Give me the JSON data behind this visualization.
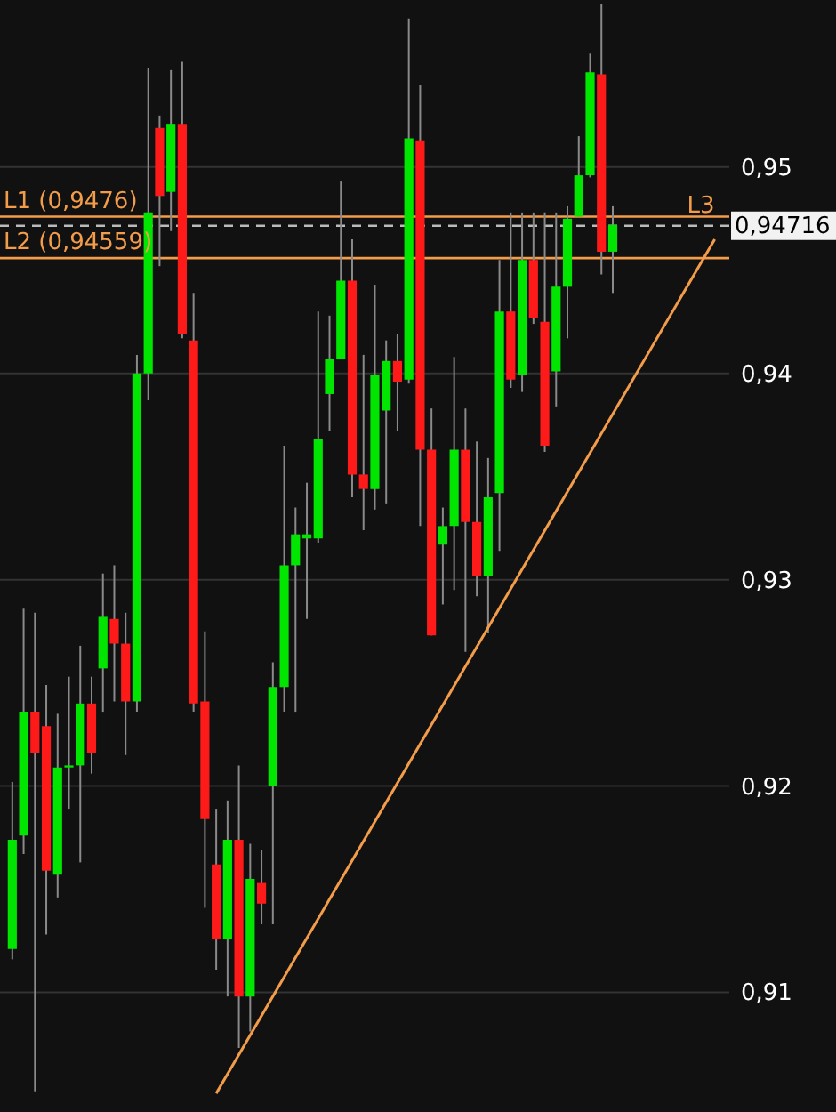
{
  "chart_data": {
    "type": "candlestick",
    "categories": [
      null,
      null,
      null,
      null,
      null,
      null,
      null,
      null,
      null,
      null,
      null,
      null,
      null,
      null,
      null,
      null,
      null,
      null,
      null,
      null,
      null,
      null,
      null,
      null,
      null,
      null,
      null,
      null,
      null,
      null,
      null,
      null,
      null,
      null,
      null,
      null,
      null,
      null,
      null,
      null,
      null,
      null,
      null,
      null,
      null,
      null,
      null,
      null,
      null,
      null,
      null,
      null,
      null,
      null,
      null,
      null,
      null,
      null,
      null,
      null,
      null,
      null,
      null
    ],
    "ohlc": [
      [
        0.9121,
        0.9202,
        0.9116,
        0.9174
      ],
      [
        0.9176,
        0.9286,
        0.9167,
        0.9236
      ],
      [
        0.9236,
        0.9284,
        0.9052,
        0.9216
      ],
      [
        0.9229,
        0.9249,
        0.9128,
        0.9159
      ],
      [
        0.9157,
        0.9235,
        0.9146,
        0.9209
      ],
      [
        0.9209,
        0.9253,
        0.9189,
        0.921
      ],
      [
        0.921,
        0.9268,
        0.9163,
        0.924
      ],
      [
        0.924,
        0.9253,
        0.9206,
        0.9216
      ],
      [
        0.9257,
        0.9303,
        0.9236,
        0.9282
      ],
      [
        0.9281,
        0.9307,
        0.9241,
        0.9269
      ],
      [
        0.9269,
        0.9284,
        0.9215,
        0.9241
      ],
      [
        0.9241,
        0.9409,
        0.9236,
        0.94
      ],
      [
        0.94,
        0.9548,
        0.9387,
        0.9478
      ],
      [
        0.9519,
        0.9525,
        0.9452,
        0.9486
      ],
      [
        0.9488,
        0.9547,
        0.9469,
        0.9521
      ],
      [
        0.9521,
        0.9551,
        0.9417,
        0.9419
      ],
      [
        0.9416,
        0.9439,
        0.9236,
        0.924
      ],
      [
        0.9241,
        0.9275,
        0.9141,
        0.9184
      ],
      [
        0.9162,
        0.9189,
        0.9111,
        0.9126
      ],
      [
        0.9126,
        0.9193,
        0.9098,
        0.9174
      ],
      [
        0.9174,
        0.921,
        0.9073,
        0.9098
      ],
      [
        0.9098,
        0.9172,
        0.9081,
        0.9155
      ],
      [
        0.9153,
        0.9169,
        0.9133,
        0.9143
      ],
      [
        0.92,
        0.926,
        0.9133,
        0.9248
      ],
      [
        0.9248,
        0.9365,
        0.9236,
        0.9307
      ],
      [
        0.9307,
        0.9335,
        0.9236,
        0.9322
      ],
      [
        0.932,
        0.9347,
        0.9281,
        0.9322
      ],
      [
        0.932,
        0.943,
        0.9318,
        0.9368
      ],
      [
        0.939,
        0.9428,
        0.9372,
        0.9407
      ],
      [
        0.9407,
        0.9493,
        0.9407,
        0.9445
      ],
      [
        0.9445,
        0.9465,
        0.934,
        0.9351
      ],
      [
        0.9351,
        0.9409,
        0.9324,
        0.9344
      ],
      [
        0.9344,
        0.9443,
        0.9334,
        0.9399
      ],
      [
        0.9382,
        0.9416,
        0.9337,
        0.9406
      ],
      [
        0.9406,
        0.9419,
        0.9372,
        0.9396
      ],
      [
        0.9397,
        0.9572,
        0.9395,
        0.9514
      ],
      [
        0.9513,
        0.954,
        0.9326,
        0.9363
      ],
      [
        0.9363,
        0.9383,
        0.9273,
        0.9273
      ],
      [
        0.9317,
        0.9335,
        0.9288,
        0.9326
      ],
      [
        0.9326,
        0.9408,
        0.9295,
        0.9363
      ],
      [
        0.9363,
        0.9383,
        0.9265,
        0.9328
      ],
      [
        0.9328,
        0.9367,
        0.9292,
        0.9302
      ],
      [
        0.9302,
        0.9359,
        0.9274,
        0.934
      ],
      [
        0.9342,
        0.9455,
        0.9314,
        0.943
      ],
      [
        0.943,
        0.9478,
        0.9393,
        0.9397
      ],
      [
        0.9399,
        0.9478,
        0.9391,
        0.9455
      ],
      [
        0.9455,
        0.9478,
        0.9424,
        0.9427
      ],
      [
        0.9425,
        0.9478,
        0.9362,
        0.9365
      ],
      [
        0.9401,
        0.9478,
        0.9384,
        0.9442
      ],
      [
        0.9442,
        0.9481,
        0.9417,
        0.9475
      ],
      [
        0.9476,
        0.9515,
        0.9476,
        0.9496
      ],
      [
        0.9496,
        0.9555,
        0.9495,
        0.9546
      ],
      [
        0.9545,
        0.9579,
        0.9448,
        0.9459
      ],
      [
        0.9459,
        0.9481,
        0.9439,
        0.9472
      ],
      null,
      null,
      null,
      null,
      null,
      null,
      null,
      null,
      null
    ],
    "colors": [
      "#00e600",
      "#00e600",
      "#ff1a1a",
      "#ff1a1a",
      "#00e600",
      "#00e600",
      "#00e600",
      "#ff1a1a",
      "#00e600",
      "#ff1a1a",
      "#ff1a1a",
      "#00e600",
      "#00e600",
      "#ff1a1a",
      "#00e600",
      "#ff1a1a",
      "#ff1a1a",
      "#ff1a1a",
      "#ff1a1a",
      "#00e600",
      "#ff1a1a",
      "#00e600",
      "#ff1a1a",
      "#00e600",
      "#00e600",
      "#00e600",
      "#00e600",
      "#00e600",
      "#00e600",
      "#00e600",
      "#ff1a1a",
      "#ff1a1a",
      "#00e600",
      "#00e600",
      "#ff1a1a",
      "#00e600",
      "#ff1a1a",
      "#ff1a1a",
      "#00e600",
      "#00e600",
      "#ff1a1a",
      "#ff1a1a",
      "#00e600",
      "#00e600",
      "#ff1a1a",
      "#00e600",
      "#ff1a1a",
      "#ff1a1a",
      "#00e600",
      "#00e600",
      "#00e600",
      "#00e600",
      "#ff1a1a",
      "#00e600",
      null,
      null,
      null,
      null,
      null,
      null,
      null,
      null,
      null
    ],
    "series": [
      {
        "name": "L3",
        "type": "line",
        "values": [
          null,
          null,
          null,
          null,
          null,
          null,
          null,
          null,
          null,
          null,
          null,
          null,
          null,
          null,
          null,
          null,
          null,
          null,
          0.9051,
          null,
          null,
          null,
          null,
          null,
          null,
          null,
          null,
          null,
          null,
          null,
          null,
          null,
          null,
          null,
          null,
          null,
          null,
          null,
          null,
          null,
          null,
          null,
          null,
          null,
          null,
          null,
          null,
          null,
          null,
          null,
          null,
          null,
          null,
          null,
          null,
          null,
          null,
          null,
          null,
          null,
          null,
          null,
          0.9465
        ],
        "color": "#f39c4a"
      }
    ],
    "ref_lines": [
      {
        "axis": "y",
        "value": 0.9476,
        "label": "L1 (0,9476)",
        "color": "#f39c4a"
      },
      {
        "axis": "y",
        "value": 0.94559,
        "label": "L2 (0,94559)",
        "color": "#f39c4a"
      },
      {
        "axis": "y",
        "value": 0.94716,
        "label": "0,94716",
        "color": "#bbbbbb",
        "line_style": "dashed"
      }
    ],
    "ylim": [
      0.9042,
      0.9581
    ],
    "yticks": [
      {
        "value": 0.91,
        "label": "0,91"
      },
      {
        "value": 0.92,
        "label": "0,92"
      },
      {
        "value": 0.93,
        "label": "0,93"
      },
      {
        "value": 0.94,
        "label": "0,94"
      },
      {
        "value": 0.95,
        "label": "0,95"
      }
    ],
    "grid": "y",
    "tick_labels": "y"
  }
}
